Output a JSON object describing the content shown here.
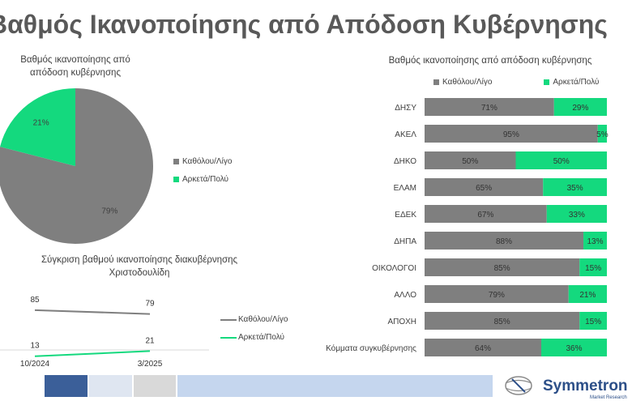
{
  "page": {
    "title": "Βαθμός Ικανοποίησης από Απόδοση Κυβέρνησης"
  },
  "colors": {
    "grey": "#7f7f7f",
    "green": "#14d97e",
    "footer_blue": "#3b5f99",
    "footer_light": "#dfe6f1",
    "footer_grey": "#d9d9d9",
    "footer_pale": "#c5d6ee"
  },
  "logo": {
    "name": "Symmetron",
    "tagline": "Market Research"
  },
  "chart_data": [
    {
      "type": "pie",
      "title": "Βαθμός ικανοποίησης από απόδοση κυβέρνησης",
      "labels": [
        "Καθόλου/Λίγο",
        "Αρκετά/Πολύ"
      ],
      "values": [
        79,
        21
      ],
      "value_labels": [
        "79%",
        "21%"
      ],
      "colors": [
        "#7f7f7f",
        "#14d97e"
      ],
      "legend": "right"
    },
    {
      "type": "bar",
      "stacked": true,
      "orientation": "horizontal",
      "title": "Βαθμός ικανοποίησης από απόδοση κυβέρνησης",
      "categories": [
        "ΔΗΣΥ",
        "ΑΚΕΛ",
        "ΔΗΚΟ",
        "ΕΛΑΜ",
        "ΕΔΕΚ",
        "ΔΗΠΑ",
        "ΟΙΚΟΛΟΓΟΙ",
        "ΑΛΛΟ",
        "ΑΠΟΧΗ",
        "Κόμματα συγκυβέρνησης"
      ],
      "series": [
        {
          "name": "Καθόλου/Λίγο",
          "color": "#7f7f7f",
          "values": [
            71,
            95,
            50,
            65,
            67,
            88,
            85,
            79,
            85,
            64
          ]
        },
        {
          "name": "Αρκετά/Πολύ",
          "color": "#14d97e",
          "values": [
            29,
            5,
            50,
            35,
            33,
            13,
            15,
            21,
            15,
            36
          ]
        }
      ],
      "legend": "top"
    },
    {
      "type": "line",
      "title": "Σύγκριση βαθμού ικανοποίησης διακυβέρνησης Χριστοδουλίδη",
      "categories": [
        "10/2024",
        "3/2025"
      ],
      "series": [
        {
          "name": "Καθόλου/Λίγο",
          "color": "#7f7f7f",
          "values": [
            85,
            79
          ]
        },
        {
          "name": "Αρκετά/Πολύ",
          "color": "#14d97e",
          "values": [
            13,
            21
          ]
        }
      ],
      "legend": "right"
    }
  ]
}
